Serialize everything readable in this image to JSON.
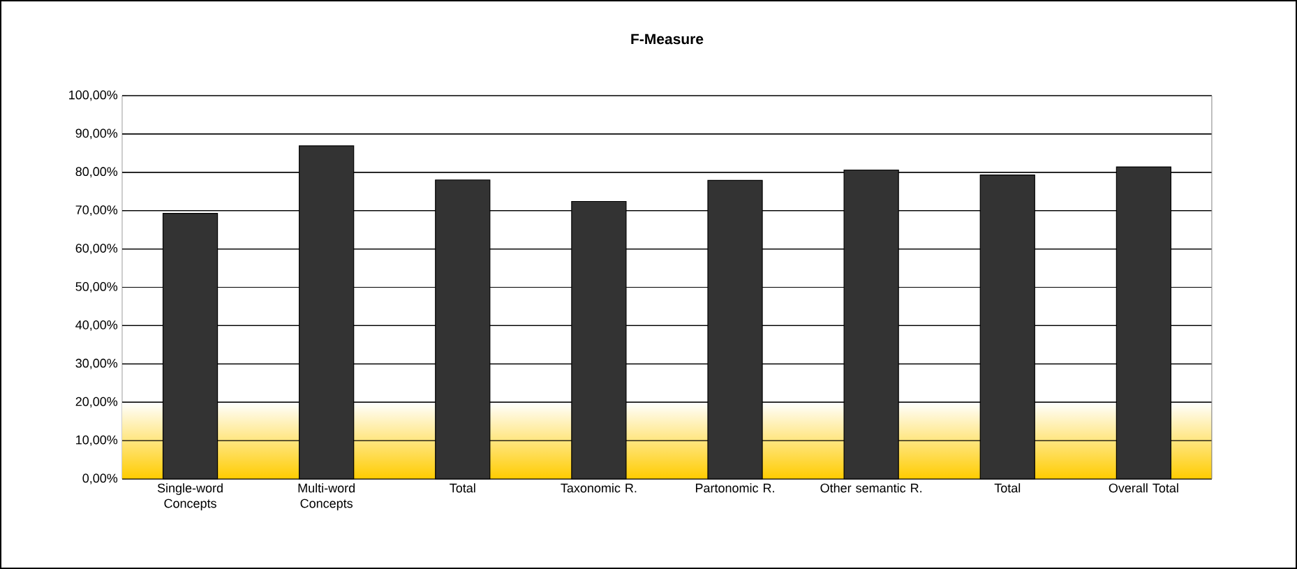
{
  "chart_data": {
    "type": "bar",
    "title": "F-Measure",
    "categories": [
      "Single-word Concepts",
      "Multi-word Concepts",
      "Total",
      "Taxonomic R.",
      "Partonomic R.",
      "Other semantic R.",
      "Total",
      "Overall Total"
    ],
    "values": [
      69.3,
      86.9,
      78.0,
      72.4,
      77.9,
      80.6,
      79.3,
      81.4
    ],
    "color": "#333333",
    "ylim": [
      0,
      100
    ],
    "yticks": [
      {
        "value": 0,
        "label": "0,00%"
      },
      {
        "value": 10,
        "label": "10,00%"
      },
      {
        "value": 20,
        "label": "20,00%"
      },
      {
        "value": 30,
        "label": "30,00%"
      },
      {
        "value": 40,
        "label": "40,00%"
      },
      {
        "value": 50,
        "label": "50,00%"
      },
      {
        "value": 60,
        "label": "60,00%"
      },
      {
        "value": 70,
        "label": "70,00%"
      },
      {
        "value": 80,
        "label": "80,00%"
      },
      {
        "value": 90,
        "label": "90,00%"
      },
      {
        "value": 100,
        "label": "100,00%"
      }
    ],
    "grid": "y",
    "bands": [
      {
        "axis": "y",
        "from": 0,
        "to": 20,
        "color": "#ffcc00"
      }
    ]
  }
}
